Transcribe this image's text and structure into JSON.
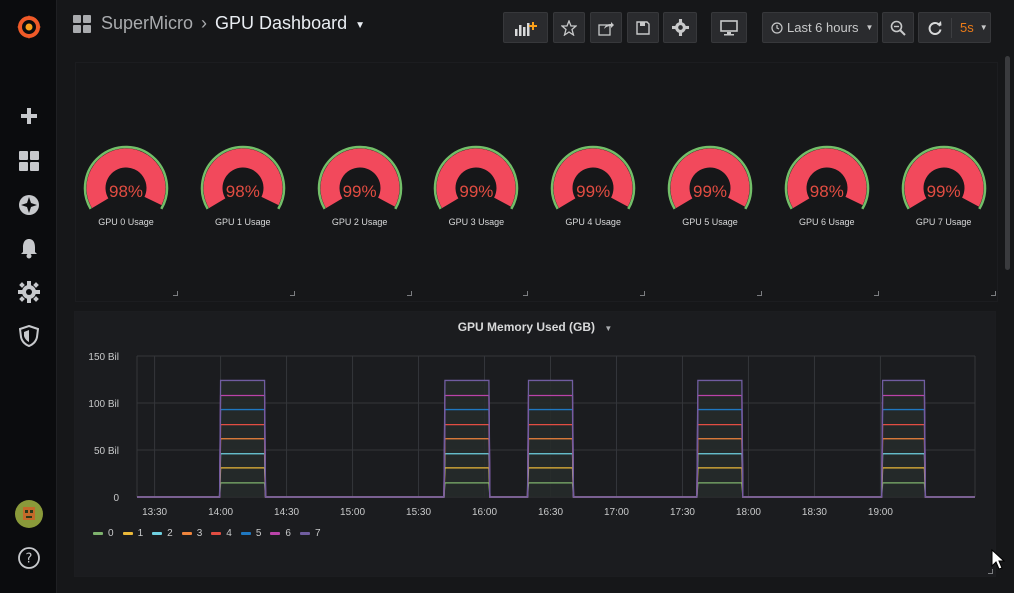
{
  "breadcrumb": {
    "folder": "SuperMicro",
    "title": "GPU Dashboard"
  },
  "toolbar": {
    "time_range": "Last 6 hours",
    "refresh_interval": "5s",
    "buttons": [
      "add-panel",
      "star",
      "share",
      "save",
      "settings",
      "cycle-view-mode",
      "zoom-out",
      "refresh"
    ]
  },
  "sidebar": {
    "items": [
      "grafana-logo",
      "create",
      "dashboards",
      "explore",
      "alerting",
      "configuration",
      "server-admin",
      "profile",
      "help"
    ]
  },
  "gauges": [
    {
      "label": "GPU 0 Usage",
      "value": "98%",
      "pct": 98
    },
    {
      "label": "GPU 1 Usage",
      "value": "98%",
      "pct": 98
    },
    {
      "label": "GPU 2 Usage",
      "value": "99%",
      "pct": 99
    },
    {
      "label": "GPU 3 Usage",
      "value": "99%",
      "pct": 99
    },
    {
      "label": "GPU 4 Usage",
      "value": "99%",
      "pct": 99
    },
    {
      "label": "GPU 5 Usage",
      "value": "99%",
      "pct": 99
    },
    {
      "label": "GPU 6 Usage",
      "value": "98%",
      "pct": 98
    },
    {
      "label": "GPU 7 Usage",
      "value": "99%",
      "pct": 99
    }
  ],
  "colors": {
    "gauge_fill": "#f2495c",
    "gauge_threshold": "#73bf69",
    "value_text": "#e24d42",
    "grid": "#34363a"
  },
  "chart_data": {
    "type": "line",
    "title": "GPU Memory Used (GB)",
    "ytick_labels": [
      "0",
      "50 Bil",
      "100 Bil",
      "150 Bil"
    ],
    "ylim": [
      0,
      150
    ],
    "xtick_labels": [
      "13:30",
      "14:00",
      "14:30",
      "15:00",
      "15:30",
      "16:00",
      "16:30",
      "17:00",
      "17:30",
      "18:00",
      "18:30",
      "19:00"
    ],
    "xlim": [
      "13:22",
      "19:43"
    ],
    "grid": true,
    "legend_position": "bottom-left",
    "active_intervals": [
      [
        "14:00",
        "14:20"
      ],
      [
        "15:42",
        "16:02"
      ],
      [
        "16:20",
        "16:40"
      ],
      [
        "17:37",
        "17:57"
      ],
      [
        "19:01",
        "19:20"
      ]
    ],
    "series": [
      {
        "name": "0",
        "color": "#7eb26d",
        "active_value": 15
      },
      {
        "name": "1",
        "color": "#eab839",
        "active_value": 31
      },
      {
        "name": "2",
        "color": "#6ed0e0",
        "active_value": 46
      },
      {
        "name": "3",
        "color": "#ef843c",
        "active_value": 62
      },
      {
        "name": "4",
        "color": "#e24d42",
        "active_value": 77
      },
      {
        "name": "5",
        "color": "#1f78c1",
        "active_value": 93
      },
      {
        "name": "6",
        "color": "#ba43a9",
        "active_value": 108
      },
      {
        "name": "7",
        "color": "#705da0",
        "active_value": 124
      }
    ]
  }
}
